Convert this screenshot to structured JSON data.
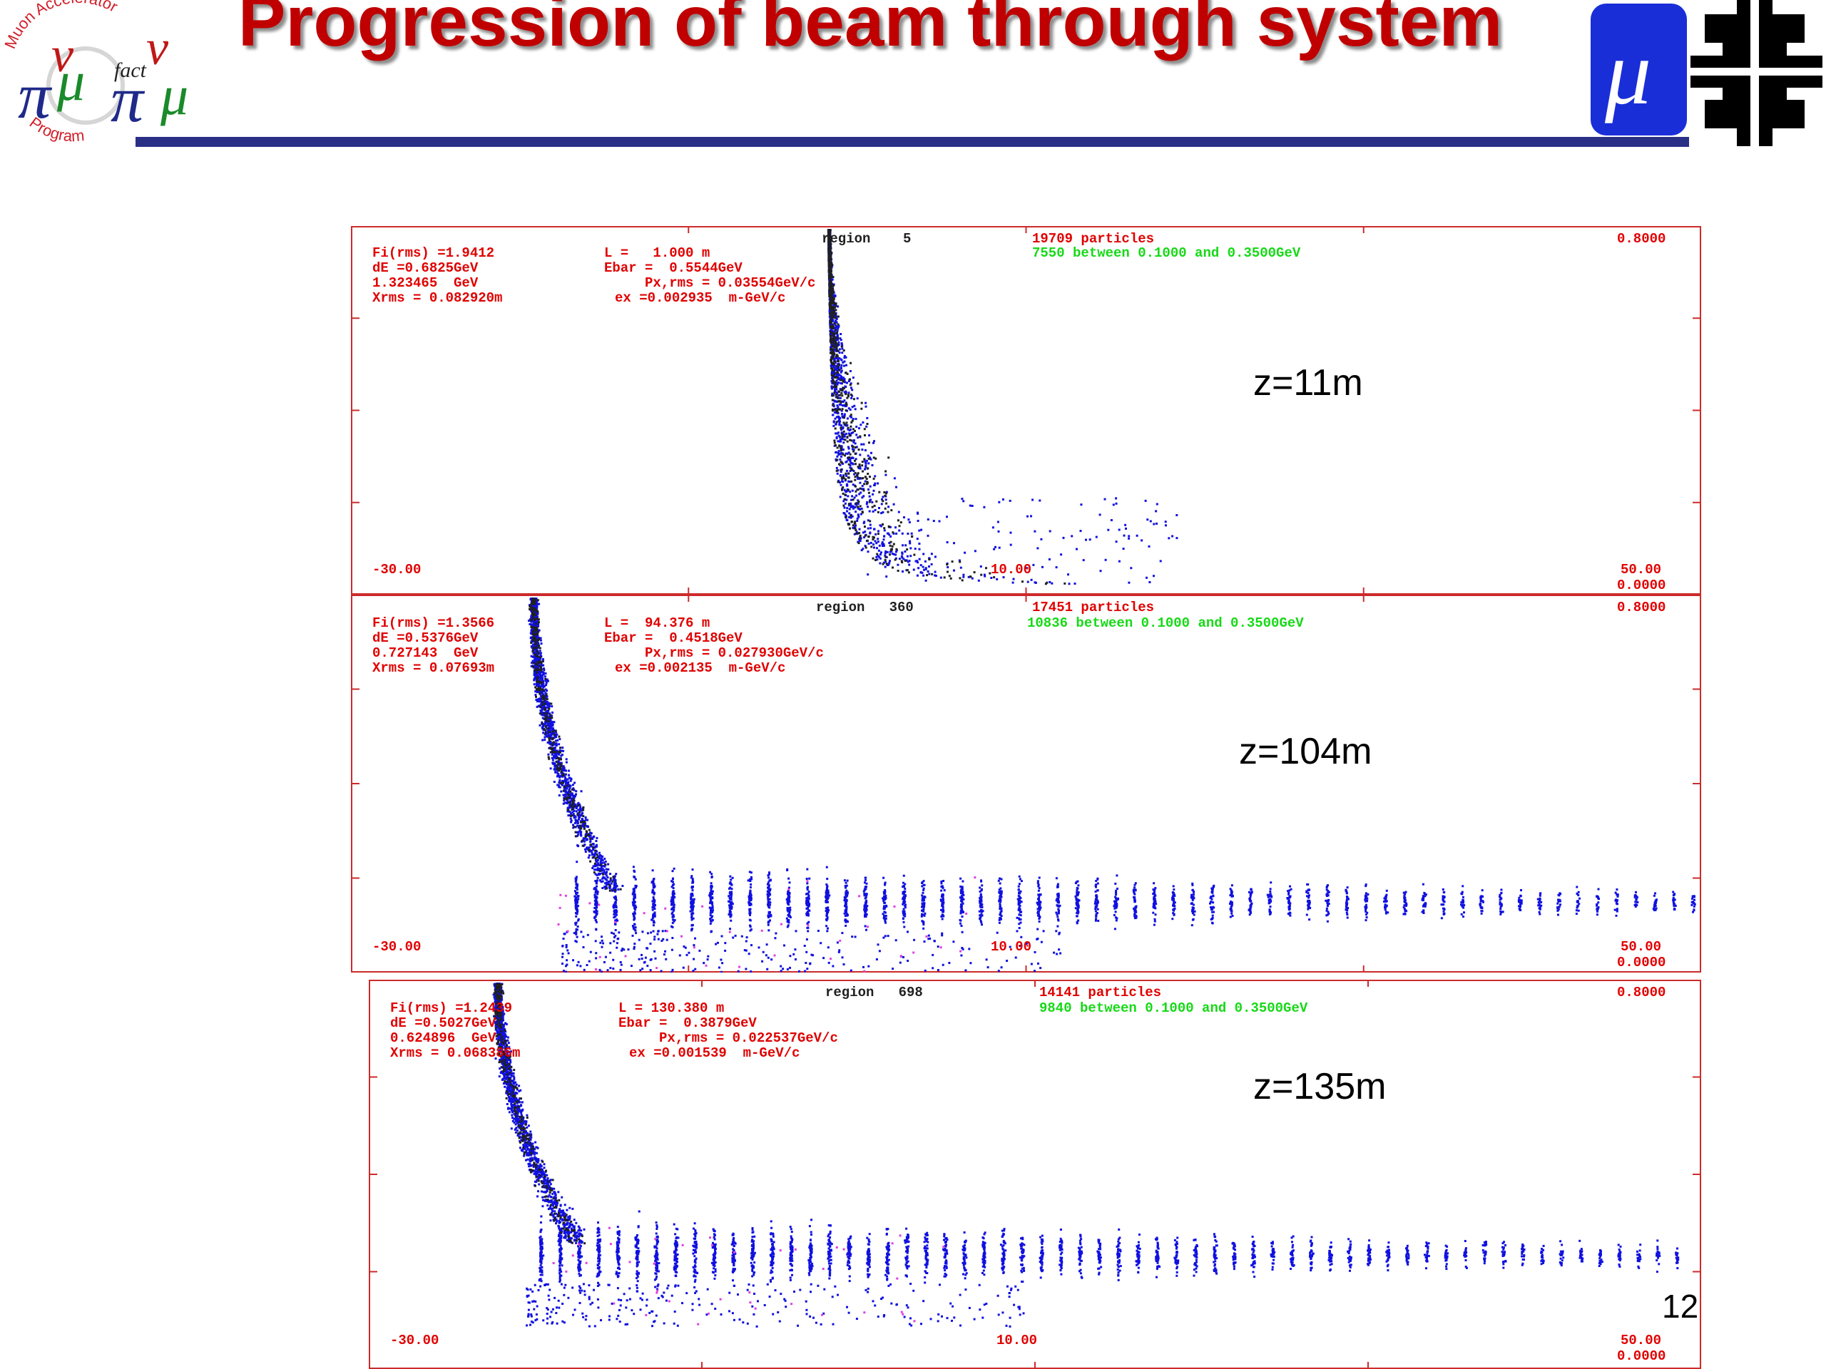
{
  "slide": {
    "title": "Progression of beam through system",
    "page_number": "12"
  },
  "logo_left": {
    "arc_text_top": "Muon Accelerator",
    "arc_text_bottom": "Program",
    "center_text": "fact"
  },
  "logo_right": {
    "glyph": "μ"
  },
  "panels": [
    {
      "z_label": "z=11m",
      "stats_left": [
        "Fi(rms) =1.9412",
        "dE =0.6825GeV",
        "1.323465  GeV",
        "Xrms = 0.082920m"
      ],
      "stats_mid": [
        "L =   1.000 m",
        "Ebar =  0.5544GeV",
        "     Px,rms = 0.03554GeV/c",
        "ex =0.002935  m-GeV/c"
      ],
      "region": "region    5",
      "particles": "19709 particles",
      "between": "7550 between 0.1000 and 0.3500GeV",
      "x_min": "-30.00",
      "x_mid": "10.00",
      "x_max": "50.00",
      "y_max": "0.8000",
      "y_min": "0.0000"
    },
    {
      "z_label": "z=104m",
      "stats_left": [
        "Fi(rms) =1.3566",
        "dE =0.5376GeV",
        "0.727143  GeV",
        "Xrms = 0.07693m"
      ],
      "stats_mid": [
        "L =  94.376 m",
        "Ebar =  0.4518GeV",
        "     Px,rms = 0.027930GeV/c",
        "ex =0.002135  m-GeV/c"
      ],
      "region": "region   360",
      "particles": "17451 particles",
      "between": "10836 between 0.1000 and 0.3500GeV",
      "x_min": "-30.00",
      "x_mid": "10.00",
      "x_max": "50.00",
      "y_max": "0.8000",
      "y_min": "0.0000"
    },
    {
      "z_label": "z=135m",
      "stats_left": [
        "Fi(rms) =1.2439",
        "dE =0.5027GeV",
        "0.624896  GeV",
        "Xrms = 0.068386m"
      ],
      "stats_mid": [
        "L = 130.380 m",
        "Ebar =  0.3879GeV",
        "     Px,rms = 0.022537GeV/c",
        "ex =0.001539  m-GeV/c"
      ],
      "region": "region   698",
      "particles": "14141 particles",
      "between": "9840 between 0.1000 and 0.3500GeV",
      "x_min": "-30.00",
      "x_mid": "10.00",
      "x_max": "50.00",
      "y_max": "0.8000",
      "y_min": "0.0000"
    }
  ],
  "colors": {
    "title": "#c00000",
    "rule": "#2a2f86",
    "frame": "#cc2b2b",
    "particles": "#1010e0",
    "tail_particles": "#202020",
    "outliers": "#e040e0",
    "stat_text": "#e00000",
    "green_text": "#16d916"
  }
}
